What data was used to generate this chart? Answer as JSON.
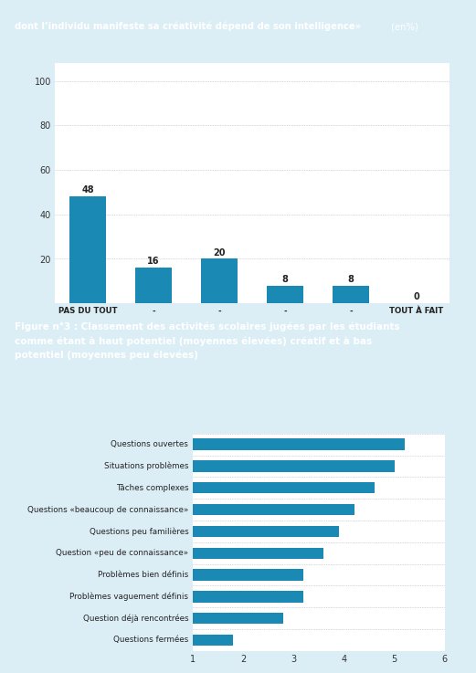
{
  "top_chart": {
    "title_bold": "dont l’individu manifeste sa créativité dépend de son intelligence»",
    "title_normal": " (en%)",
    "categories": [
      "PAS DU TOUT",
      "-",
      "-",
      "-",
      "-",
      "TOUT À FAIT"
    ],
    "values": [
      48,
      16,
      20,
      8,
      8,
      0
    ],
    "bar_color": "#1a8ab5",
    "ylim": [
      0,
      100
    ],
    "yticks": [
      0,
      20,
      40,
      60,
      80,
      100
    ],
    "bg_color": "#ffffff",
    "border_color": "#5ab4d6"
  },
  "figure3_title_bold": "Figure n°3 : ",
  "figure3_title_line1": "Classement des activités scolaires jugées par les étudiants",
  "figure3_title_line2": "comme étant à haut potentiel (moyennes élevées) créatif et à bas",
  "figure3_title_line3": "potentiel (moyennes peu élevées)",
  "bottom_chart": {
    "categories": [
      "Questions ouvertes",
      "Situations problèmes",
      "Tâches complexes",
      "Questions «beaucoup de connaissance»",
      "Questions peu familières",
      "Question «peu de connaissance»",
      "Problèmes bien définis",
      "Problèmes vaguement définis",
      "Question déjà rencontrées",
      "Questions fermées"
    ],
    "values": [
      5.2,
      5.0,
      4.6,
      4.2,
      3.9,
      3.6,
      3.2,
      3.2,
      2.8,
      1.8
    ],
    "bar_color": "#1a8ab5",
    "xlim": [
      1,
      6
    ],
    "xticks": [
      1,
      2,
      3,
      4,
      5,
      6
    ]
  },
  "header_bg_color": "#1a8ab5",
  "figure3_header_bg_color": "#1a8ab5",
  "outer_bg_color": "#dceef5",
  "panel_border_color": "#5ab4d6",
  "white": "#ffffff"
}
